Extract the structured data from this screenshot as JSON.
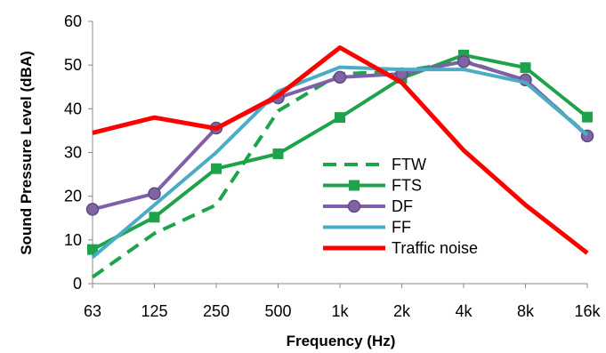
{
  "chart_data": {
    "type": "line",
    "title": "",
    "xlabel": "Frequency (Hz)",
    "ylabel": "Sound Pressure Level (dBA)",
    "categories": [
      "63",
      "125",
      "250",
      "500",
      "1k",
      "2k",
      "4k",
      "8k",
      "16k"
    ],
    "ylim": [
      0,
      60
    ],
    "yticks": [
      0,
      10,
      20,
      30,
      40,
      50,
      60
    ],
    "grid": false,
    "legend_position": "center-right",
    "series": [
      {
        "name": "FTW",
        "color": "#1FA34A",
        "style": "dashed",
        "marker": "none",
        "values": [
          1.5,
          11.5,
          18,
          39.5,
          48,
          48.5,
          51,
          46.5,
          34
        ]
      },
      {
        "name": "FTS",
        "color": "#1FA34A",
        "style": "solid",
        "marker": "square",
        "values": [
          7.8,
          15.2,
          26.3,
          29.7,
          38,
          47,
          52.3,
          49.4,
          38.1
        ]
      },
      {
        "name": "DF",
        "color": "#7F5FA8",
        "style": "solid",
        "marker": "circle",
        "values": [
          17,
          20.6,
          35.6,
          42.5,
          47.2,
          48,
          50.8,
          46.6,
          33.8
        ]
      },
      {
        "name": "FF",
        "color": "#4BACC6",
        "style": "solid",
        "marker": "none",
        "values": [
          6,
          18,
          30,
          44,
          49.5,
          49,
          49,
          46,
          34
        ]
      },
      {
        "name": "Traffic noise",
        "color": "#FF0000",
        "style": "solid",
        "marker": "none",
        "values": [
          34.5,
          38,
          35.5,
          43,
          54,
          46,
          30.5,
          18,
          7
        ]
      }
    ]
  }
}
